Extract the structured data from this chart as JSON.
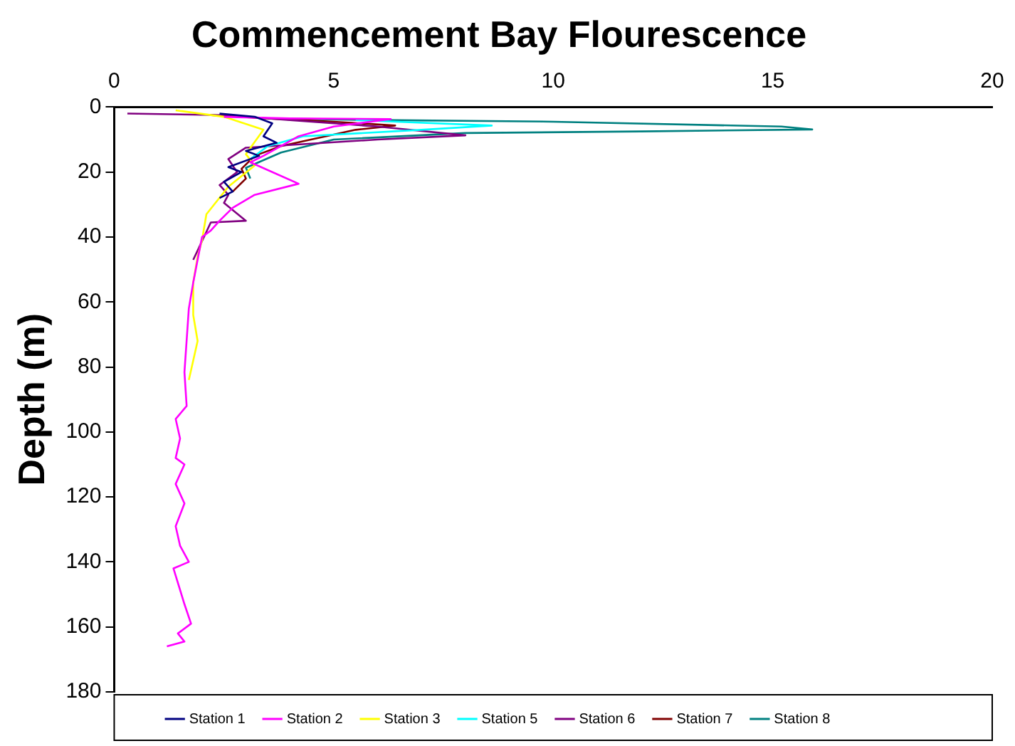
{
  "chart_data": {
    "type": "line",
    "title": "Commencement Bay Flourescence",
    "ylabel": "Depth (m)",
    "xlim": [
      0,
      20
    ],
    "xticks": [
      0,
      5,
      10,
      15,
      20
    ],
    "ylim": [
      180,
      0
    ],
    "yticks": [
      0,
      20,
      40,
      60,
      80,
      100,
      120,
      140,
      160,
      180
    ],
    "grid": false,
    "legend": "bottom",
    "marker": "none",
    "line_style": "solid",
    "series": [
      {
        "name": "Station 1",
        "color": "#000080",
        "x": [
          2.4,
          3.2,
          3.6,
          3.4,
          3.7,
          3.0,
          3.3,
          2.6,
          2.9,
          2.5,
          2.7,
          2.4
        ],
        "values": [
          2,
          3,
          5,
          9,
          11,
          13.5,
          15,
          18.5,
          20,
          23,
          26,
          28
        ]
      },
      {
        "name": "Station 2",
        "color": "#ff00ff",
        "x": [
          2.5,
          4.0,
          6.3,
          5.0,
          4.2,
          3.8,
          3.4,
          3.1,
          4.2,
          3.2,
          2.7,
          2.4,
          2.2,
          2.0,
          1.8,
          1.7,
          1.6,
          1.65,
          1.4,
          1.5,
          1.4,
          1.6,
          1.4,
          1.6,
          1.4,
          1.5,
          1.7,
          1.35,
          1.6,
          1.75,
          1.45,
          1.6,
          1.2
        ],
        "values": [
          3,
          3.5,
          3.7,
          6,
          9,
          12,
          15,
          17,
          23.6,
          27,
          31,
          35,
          38,
          40,
          54,
          62,
          81.6,
          92,
          96,
          102,
          108,
          110,
          116,
          122,
          129,
          135,
          140,
          142,
          153,
          159,
          162,
          164.5,
          166
        ]
      },
      {
        "name": "Station 3",
        "color": "#ffff00",
        "x": [
          1.4,
          2.5,
          3.4,
          3.0,
          3.2,
          2.6,
          2.1,
          2.0,
          1.9,
          1.8,
          1.8,
          1.9,
          1.7
        ],
        "values": [
          1,
          3,
          7,
          14.5,
          18,
          24.5,
          33,
          41,
          46,
          54,
          64,
          72,
          84
        ]
      },
      {
        "name": "Station 5",
        "color": "#00ffff",
        "x": [
          5.5,
          8.6,
          7.0,
          4.3,
          3.5,
          3.1
        ],
        "values": [
          4,
          5.7,
          7,
          9,
          12,
          16
        ]
      },
      {
        "name": "Station 6",
        "color": "#800080",
        "x": [
          0.3,
          2.5,
          4.0,
          6.0,
          8.0,
          6.0,
          3.0,
          2.6,
          2.8,
          2.4,
          2.6,
          2.5,
          3.0,
          2.2,
          1.8
        ],
        "values": [
          2,
          2.5,
          4,
          6,
          8.7,
          10,
          12.5,
          16,
          20,
          24,
          27,
          29.5,
          35,
          35.5,
          47
        ]
      },
      {
        "name": "Station 7",
        "color": "#800000",
        "x": [
          2.2,
          3.5,
          5.0,
          6.4,
          5.5,
          3.8,
          3.2,
          2.9,
          3.0,
          2.7
        ],
        "values": [
          2.5,
          3.5,
          4.5,
          5.7,
          7,
          12,
          15,
          19,
          22,
          26
        ]
      },
      {
        "name": "Station 8",
        "color": "#008080",
        "x": [
          3.5,
          6.0,
          10.0,
          15.2,
          15.9,
          12.0,
          8.0,
          5.0,
          3.8,
          3.0,
          3.1
        ],
        "values": [
          3.5,
          4,
          4.5,
          6,
          6.9,
          7.5,
          8,
          10,
          14,
          18.7,
          22
        ]
      }
    ]
  }
}
